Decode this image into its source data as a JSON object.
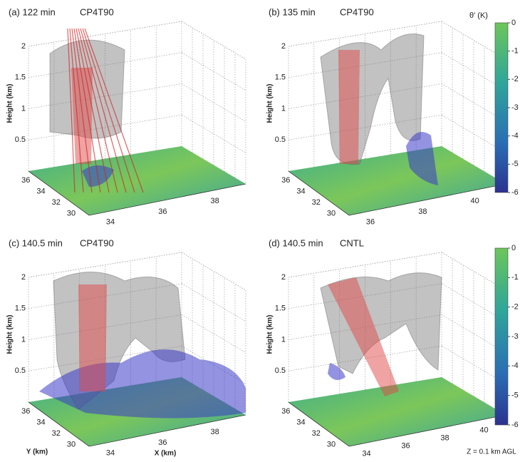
{
  "panels": [
    {
      "label": "(a) 122 min",
      "case": "CP4T90",
      "z_label": "Height (km)",
      "z_ticks": [
        0.5,
        1,
        1.5,
        2
      ],
      "y_ticks": [
        36,
        34,
        32,
        30
      ],
      "x_ticks": [
        34,
        36,
        38
      ]
    },
    {
      "label": "(b) 135 min",
      "case": "CP4T90",
      "z_label": "Height (km)",
      "z_ticks": [
        0.5,
        1,
        1.5,
        2
      ],
      "y_ticks": [
        36,
        34,
        32,
        30
      ],
      "x_ticks": [
        36,
        38,
        40
      ]
    },
    {
      "label": "(c) 140.5 min",
      "case": "CP4T90",
      "z_label": "Height (km)",
      "z_ticks": [
        0.5,
        1,
        1.5,
        2
      ],
      "y_ticks": [
        36,
        34,
        32,
        30
      ],
      "x_ticks": [
        34,
        36,
        38
      ]
    },
    {
      "label": "(d) 140.5 min",
      "case": "CNTL",
      "z_label": "Height (km)",
      "z_ticks": [
        0.5,
        1,
        1.5,
        2
      ],
      "y_ticks": [
        36,
        34,
        32,
        30
      ],
      "x_ticks": [
        34,
        36,
        38,
        40
      ]
    }
  ],
  "colorbars": [
    {
      "label": "θ' (K)",
      "ticks": [
        0,
        -1,
        -2,
        -3,
        -4,
        -5,
        -6
      ]
    },
    {
      "ticks": [
        0,
        -1,
        -2,
        -3,
        -4,
        -5,
        -6
      ]
    }
  ],
  "y_axis_label": "Y (km)",
  "x_axis_label": "X (km)",
  "note": "Z = 0.1 km AGL"
}
